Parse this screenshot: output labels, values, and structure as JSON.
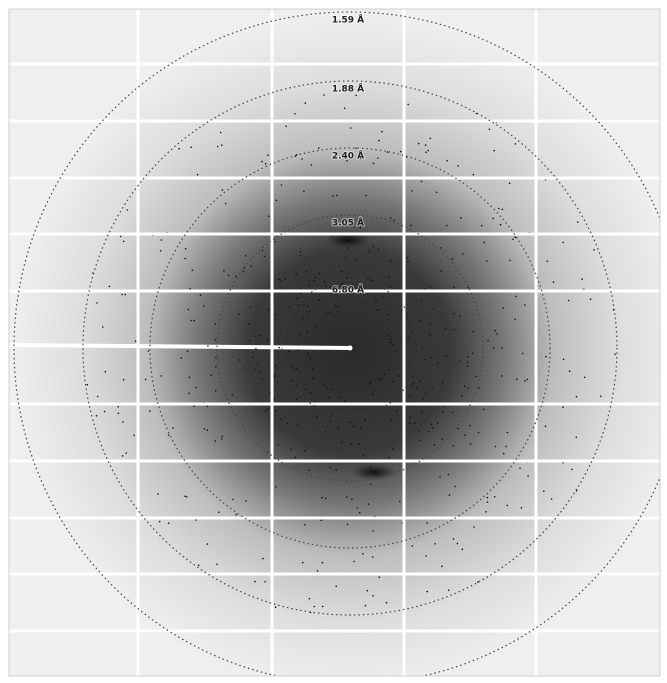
{
  "rings": [
    {
      "label": "1.59 Å"
    },
    {
      "label": "1.88 Å"
    },
    {
      "label": "2.40 Å"
    },
    {
      "label": "3.05 Å"
    },
    {
      "label": "6.80 Å"
    }
  ]
}
